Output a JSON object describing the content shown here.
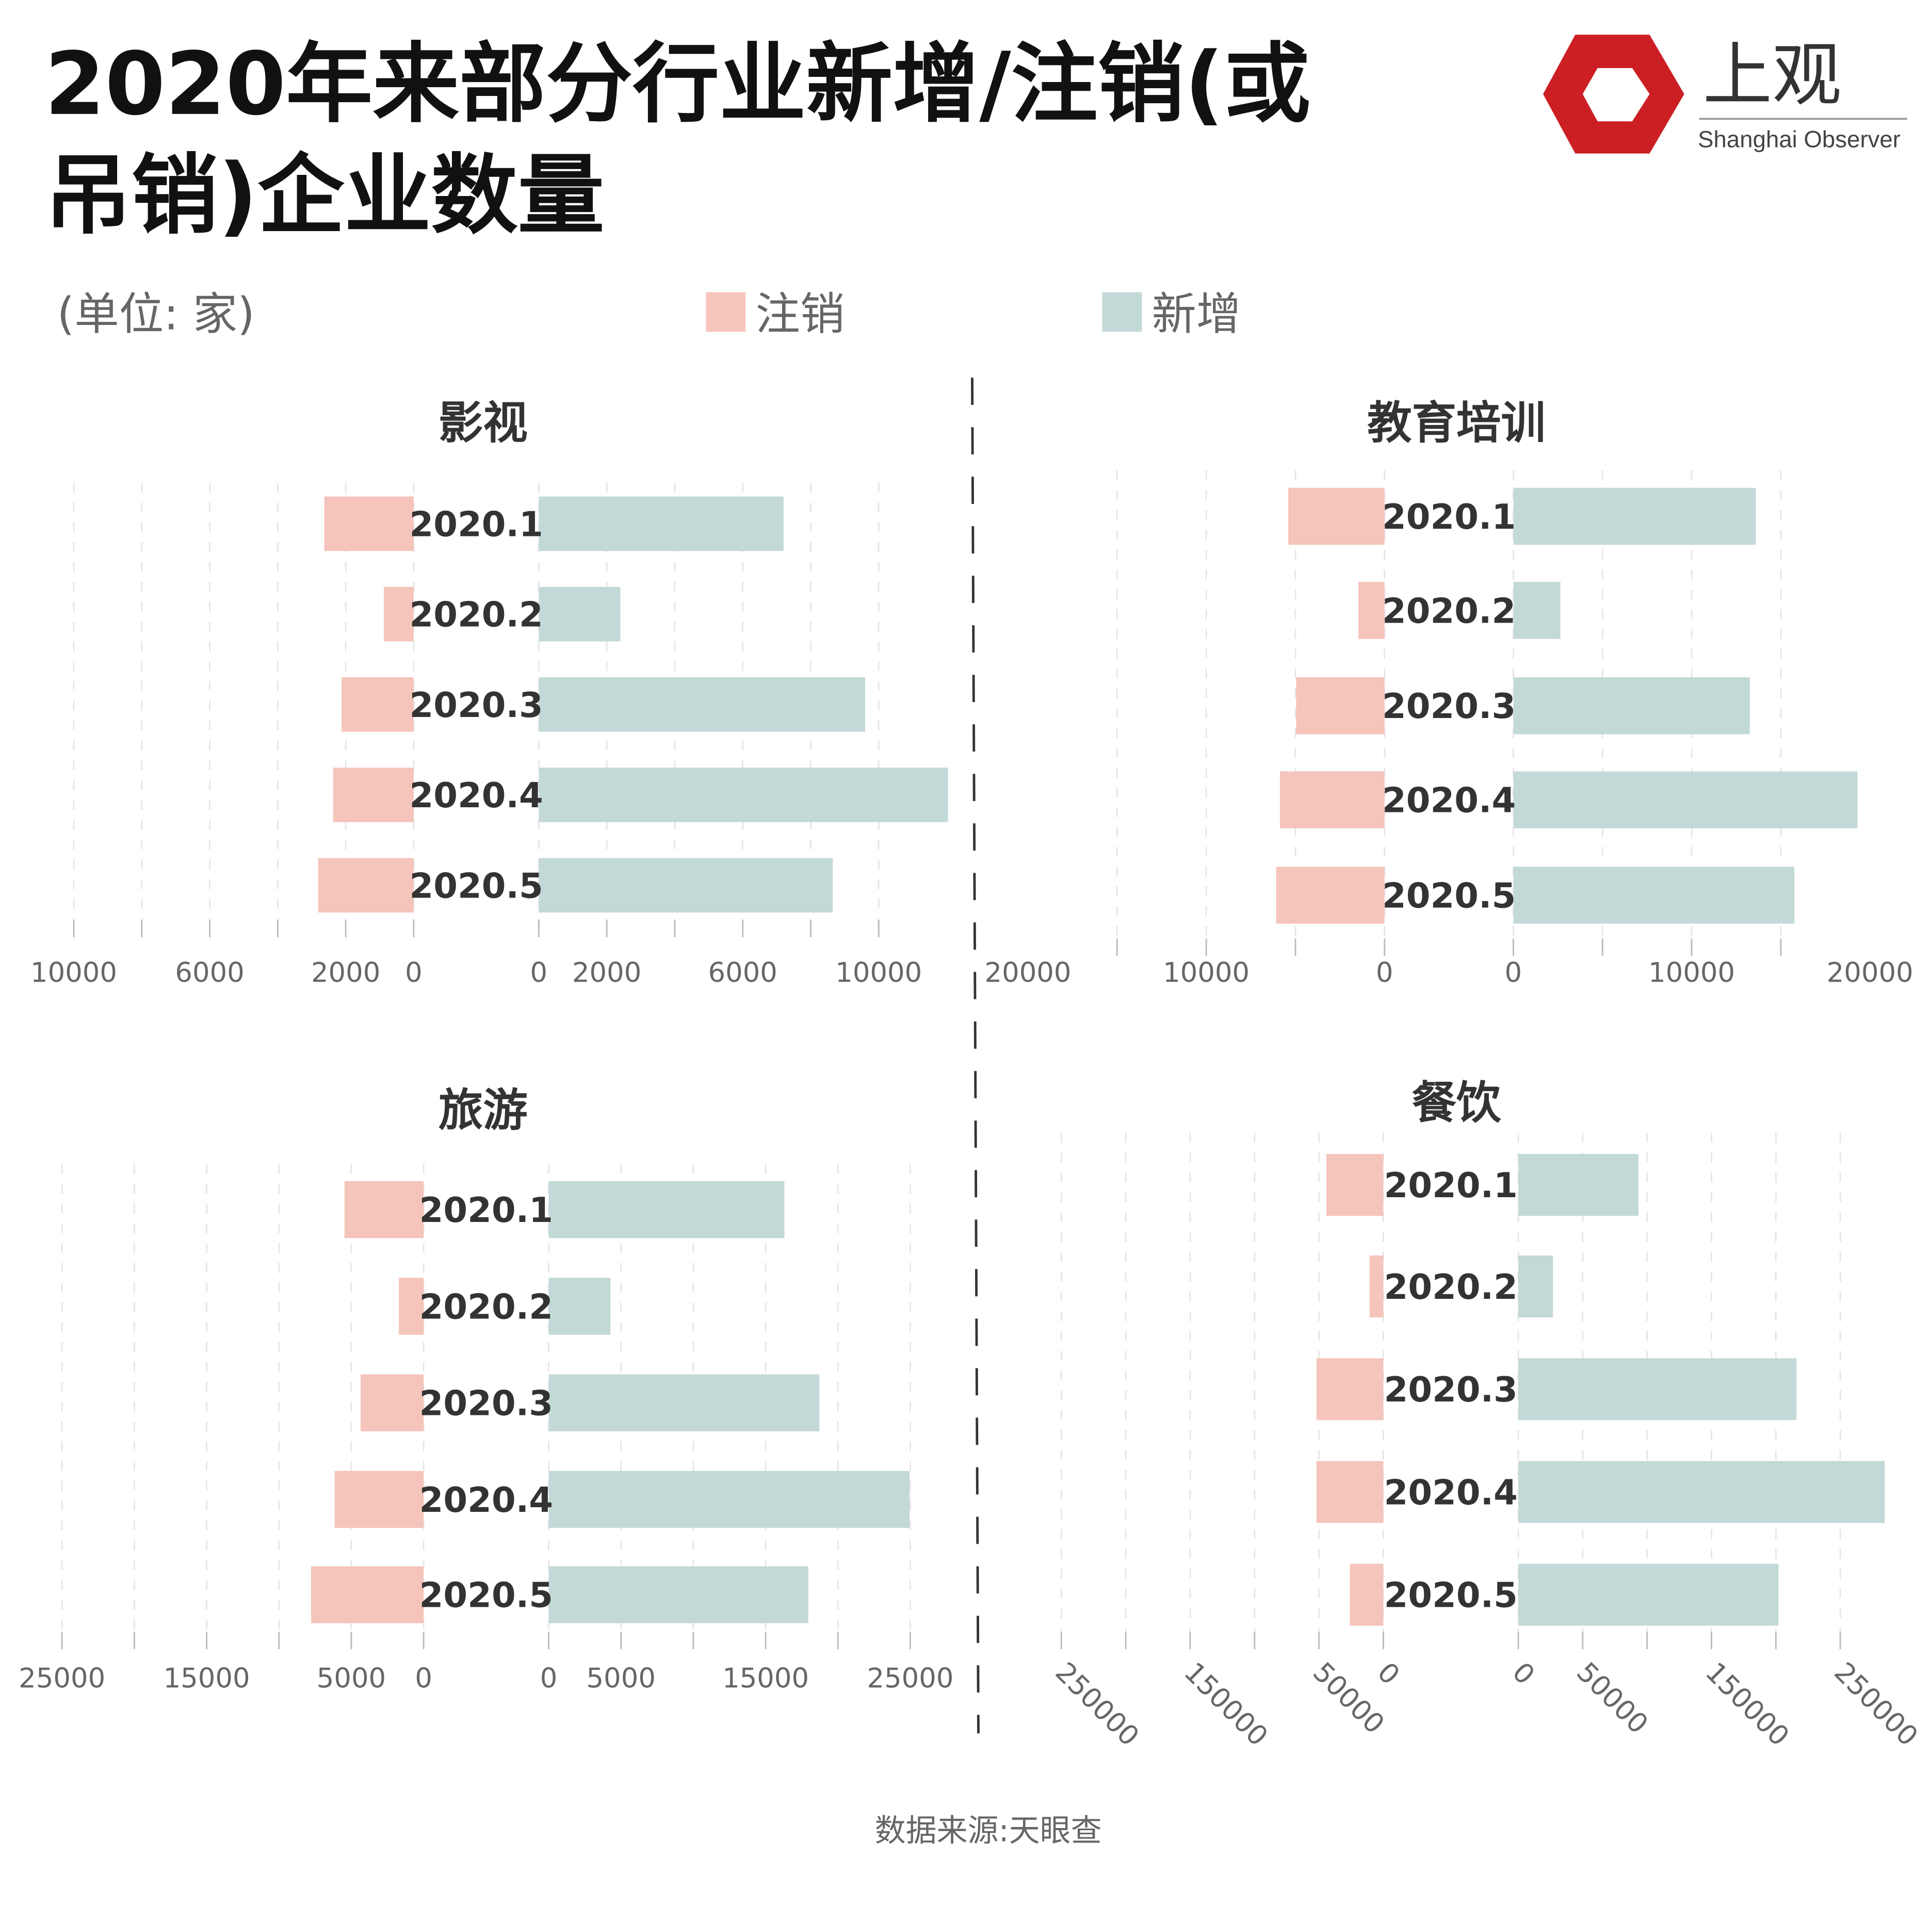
{
  "title_line1": "2020年来部分行业新增/注销(或",
  "title_line2": "吊销)企业数量",
  "unit": "(单位: 家)",
  "logo": {
    "cn": "上观",
    "en": "Shanghai Observer"
  },
  "source": "数据来源:天眼查",
  "colors": {
    "注销": "#f5c4bb",
    "新增": "#c3d9d7"
  },
  "chart_data": [
    {
      "type": "bar",
      "title": "影视",
      "categories": [
        "2020.1",
        "2020.2",
        "2020.3",
        "2020.4",
        "2020.5"
      ],
      "series": [
        {
          "name": "注销",
          "values": [
            2630,
            880,
            2120,
            2370,
            2810
          ]
        },
        {
          "name": "新增",
          "values": [
            7200,
            2400,
            9600,
            12040,
            8650
          ]
        }
      ],
      "left_tick_labels": [
        "10000",
        "6000",
        "2000",
        "0"
      ],
      "right_tick_labels": [
        "0",
        "2000",
        "6000",
        "10000"
      ],
      "grid": true
    },
    {
      "type": "bar",
      "title": "教育培训",
      "categories": [
        "2020.1",
        "2020.2",
        "2020.3",
        "2020.4",
        "2020.5"
      ],
      "series": [
        {
          "name": "注销",
          "values": [
            5400,
            1470,
            4960,
            5870,
            6080
          ]
        },
        {
          "name": "新增",
          "values": [
            13600,
            2640,
            13260,
            19300,
            15760
          ]
        }
      ],
      "left_tick_labels": [
        "20000",
        "10000",
        "0"
      ],
      "right_tick_labels": [
        "0",
        "10000",
        "20000"
      ],
      "grid": true
    },
    {
      "type": "bar",
      "title": "旅游",
      "categories": [
        "2020.1",
        "2020.2",
        "2020.3",
        "2020.4",
        "2020.5"
      ],
      "series": [
        {
          "name": "注销",
          "values": [
            5470,
            1710,
            4360,
            6150,
            7780
          ]
        },
        {
          "name": "新增",
          "values": [
            16300,
            4270,
            18720,
            24960,
            17950
          ]
        }
      ],
      "left_tick_labels": [
        "25000",
        "15000",
        "5000",
        "0"
      ],
      "right_tick_labels": [
        "0",
        "5000",
        "15000",
        "25000"
      ],
      "grid": true
    },
    {
      "type": "bar",
      "title": "餐饮",
      "categories": [
        "2020.1",
        "2020.2",
        "2020.3",
        "2020.4",
        "2020.5"
      ],
      "series": [
        {
          "name": "注销",
          "values": [
            44200,
            10600,
            51900,
            51900,
            26000
          ]
        },
        {
          "name": "新增",
          "values": [
            93300,
            26900,
            216000,
            284600,
            202000
          ]
        }
      ],
      "left_tick_labels": [
        "250000",
        "150000",
        "50000",
        "0"
      ],
      "right_tick_labels": [
        "0",
        "50000",
        "150000",
        "250000"
      ],
      "grid": true
    }
  ]
}
